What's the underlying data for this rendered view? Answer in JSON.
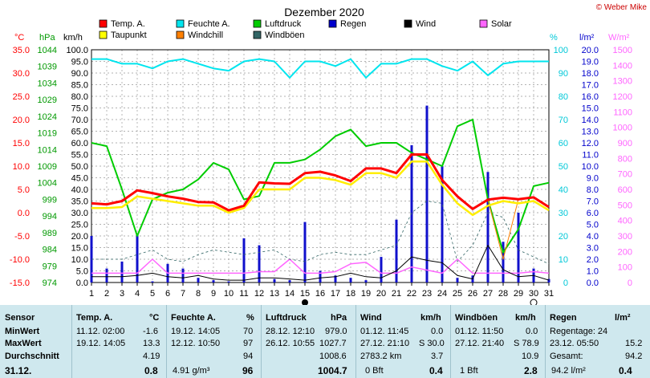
{
  "header": {
    "title": "Dezember 2020",
    "credit": "© Weber Mike"
  },
  "legend": [
    {
      "label": "Temp. A.",
      "color": "#ff0000"
    },
    {
      "label": "Feuchte A.",
      "color": "#00e5ee"
    },
    {
      "label": "Luftdruck",
      "color": "#00cc00"
    },
    {
      "label": "Regen",
      "color": "#0000cc"
    },
    {
      "label": "Wind",
      "color": "#000000"
    },
    {
      "label": "Solar",
      "color": "#ff66ff"
    },
    {
      "label": "Taupunkt",
      "color": "#ffff00"
    },
    {
      "label": "Windchill",
      "color": "#ff8000"
    },
    {
      "label": "Windböen",
      "color": "#336666"
    }
  ],
  "axis_units": {
    "celsius": "°C",
    "hpa": "hPa",
    "kmh": "km/h",
    "percent": "%",
    "rain": "l/m²",
    "solar": "W/m²"
  },
  "chart_data": {
    "type": "line",
    "title": "Dezember 2020",
    "x": [
      1,
      2,
      3,
      4,
      5,
      6,
      7,
      8,
      9,
      10,
      11,
      12,
      13,
      14,
      15,
      16,
      17,
      18,
      19,
      20,
      21,
      22,
      23,
      24,
      25,
      26,
      27,
      28,
      29,
      30,
      31
    ],
    "axes": {
      "temp_c": {
        "min": -15,
        "max": 35,
        "ticks": [
          "35.0",
          "30.0",
          "25.0",
          "20.0",
          "15.0",
          "10.0",
          "5.0",
          "0.0",
          "-5.0",
          "-10.0",
          "-15.0"
        ]
      },
      "pressure_hpa": {
        "min": 974,
        "max": 1044,
        "ticks": [
          "1044",
          "1039",
          "1034",
          "1029",
          "1024",
          "1019",
          "1014",
          "1009",
          "1004",
          "999",
          "994",
          "989",
          "984",
          "979",
          "974"
        ]
      },
      "wind_kmh": {
        "min": 0,
        "max": 100,
        "ticks": [
          "100.0",
          "95.0",
          "90.0",
          "85.0",
          "80.0",
          "75.0",
          "70.0",
          "65.0",
          "60.0",
          "55.0",
          "50.0",
          "45.0",
          "40.0",
          "35.0",
          "30.0",
          "25.0",
          "20.0",
          "15.0",
          "10.0",
          "5.0",
          "0.0"
        ]
      },
      "humidity_pct": {
        "min": 0,
        "max": 100,
        "ticks": [
          "100",
          "90",
          "80",
          "70",
          "60",
          "50",
          "40",
          "30",
          "20",
          "10",
          "0"
        ]
      },
      "rain_lm2": {
        "min": 0,
        "max": 20,
        "ticks": [
          "20.0",
          "19.0",
          "18.0",
          "17.0",
          "16.0",
          "15.0",
          "14.0",
          "13.0",
          "12.0",
          "11.0",
          "10.0",
          "9.0",
          "8.0",
          "7.0",
          "6.0",
          "5.0",
          "4.0",
          "3.0",
          "2.0",
          "1.0",
          "0.0"
        ]
      },
      "solar_wm2": {
        "min": 0,
        "max": 1500,
        "ticks": [
          "1500",
          "1400",
          "1300",
          "1200",
          "1100",
          "1000",
          "900",
          "800",
          "700",
          "600",
          "500",
          "400",
          "300",
          "200",
          "100",
          "0"
        ]
      }
    },
    "series": [
      {
        "name": "Temp. A.",
        "axis": "temp_c",
        "values": [
          2.0,
          1.8,
          2.5,
          4.8,
          4.2,
          3.5,
          3.0,
          2.3,
          2.2,
          0.5,
          1.5,
          6.5,
          6.3,
          6.2,
          8.5,
          8.8,
          8.0,
          6.8,
          9.5,
          9.5,
          8.5,
          12.5,
          12.5,
          7.0,
          3.5,
          0.8,
          2.8,
          3.2,
          2.9,
          3.3,
          1.2
        ]
      },
      {
        "name": "Taupunkt",
        "axis": "temp_c",
        "values": [
          1.0,
          1.0,
          1.2,
          3.5,
          3.0,
          2.5,
          2.0,
          1.5,
          1.5,
          0.0,
          1.0,
          5.0,
          5.0,
          5.0,
          7.5,
          7.5,
          7.0,
          6.0,
          8.5,
          8.5,
          7.5,
          11.0,
          11.0,
          6.0,
          2.0,
          -0.5,
          1.5,
          2.5,
          2.0,
          2.5,
          0.5
        ]
      },
      {
        "name": "Windchill",
        "axis": "temp_c",
        "values": [
          2.0,
          1.8,
          2.5,
          4.8,
          4.2,
          3.5,
          3.0,
          2.3,
          2.2,
          0.5,
          1.5,
          6.5,
          6.3,
          6.2,
          8.5,
          8.8,
          8.0,
          6.8,
          9.5,
          9.5,
          8.5,
          12.5,
          12.5,
          7.0,
          3.5,
          0.8,
          2.8,
          -10.0,
          2.9,
          3.3,
          1.2
        ]
      },
      {
        "name": "Feuchte A.",
        "axis": "humidity_pct",
        "values": [
          96,
          96,
          94,
          94,
          92,
          95,
          96,
          94,
          92,
          91,
          95,
          96,
          95,
          88,
          95,
          95,
          93,
          96,
          88,
          94,
          94,
          96,
          96,
          93,
          91,
          95,
          89,
          94,
          95,
          95,
          95
        ]
      },
      {
        "name": "Luftdruck",
        "axis": "pressure_hpa",
        "values": [
          1016,
          1015,
          1002,
          988,
          999,
          1001,
          1002,
          1005,
          1010,
          1008,
          999,
          1000,
          1010,
          1010,
          1011,
          1014,
          1018,
          1020,
          1015,
          1016,
          1016,
          1013,
          1011,
          1009,
          1021,
          1023,
          999,
          983,
          990,
          1003,
          1004
        ]
      },
      {
        "name": "Regen",
        "axis": "rain_lm2",
        "type": "bar",
        "values": [
          4.0,
          1.2,
          1.8,
          4.2,
          0.1,
          1.6,
          1.2,
          0.4,
          0.2,
          0.1,
          3.8,
          3.2,
          0.3,
          0.2,
          5.2,
          1.0,
          0.6,
          0.4,
          0.2,
          2.2,
          5.4,
          11.8,
          15.2,
          10.0,
          0.4,
          0.6,
          9.5,
          3.5,
          6.0,
          1.2,
          0.3
        ]
      },
      {
        "name": "Wind",
        "axis": "wind_kmh",
        "values": [
          2.5,
          2.5,
          2.5,
          3.0,
          4.0,
          2.5,
          2.0,
          3.0,
          1.5,
          1.0,
          1.0,
          2.0,
          2.0,
          1.5,
          1.0,
          2.0,
          2.5,
          4.0,
          2.5,
          2.0,
          5.0,
          11.0,
          9.5,
          8.5,
          3.0,
          1.5,
          16.0,
          5.5,
          2.5,
          3.0,
          1.0
        ]
      },
      {
        "name": "Windböen",
        "axis": "wind_kmh",
        "values": [
          10,
          10,
          10,
          12,
          14,
          10,
          9,
          12,
          14,
          13,
          12,
          13,
          14,
          10,
          9,
          12,
          13,
          12,
          12,
          14,
          16,
          30,
          35,
          34,
          9,
          16,
          30,
          28,
          14,
          11,
          8
        ]
      },
      {
        "name": "Solar",
        "axis": "solar_wm2",
        "values": [
          60,
          60,
          60,
          60,
          150,
          60,
          60,
          60,
          60,
          60,
          60,
          70,
          70,
          150,
          60,
          60,
          70,
          120,
          130,
          60,
          60,
          100,
          80,
          60,
          150,
          60,
          60,
          60,
          60,
          70,
          60
        ]
      }
    ]
  },
  "table": {
    "headers": {
      "sensor": "Sensor",
      "temp": "Temp. A.",
      "temp_unit": "°C",
      "feuchte": "Feuchte A.",
      "feuchte_unit": "%",
      "druck": "Luftdruck",
      "druck_unit": "hPa",
      "wind": "Wind",
      "wind_unit": "km/h",
      "boen": "Windböen",
      "boen_unit": "km/h",
      "regen": "Regen",
      "regen_unit": "l/m²"
    },
    "rows": {
      "min": {
        "label": "MinWert",
        "temp_time": "11.12. 02:00",
        "temp_val": "-1.6",
        "feuchte_time": "19.12. 14:05",
        "feuchte_val": "70",
        "druck_time": "28.12. 12:10",
        "druck_val": "979.0",
        "wind_time": "01.12. 11:45",
        "wind_val": "0.0",
        "boen_time": "01.12. 11:50",
        "boen_val": "0.0",
        "regen_text": "Regentage: 24",
        "regen_val": ""
      },
      "max": {
        "label": "MaxWert",
        "temp_time": "19.12. 14:05",
        "temp_val": "13.3",
        "feuchte_time": "12.12. 10:50",
        "feuchte_val": "97",
        "druck_time": "26.12. 10:55",
        "druck_val": "1027.7",
        "wind_time": "27.12. 21:10",
        "wind_val": "S 30.0",
        "boen_time": "27.12. 21:40",
        "boen_val": "S 78.9",
        "regen_text": "23.12. 05:50",
        "regen_val": "15.2"
      },
      "avg": {
        "label": "Durchschnitt",
        "temp_val": "4.19",
        "feuchte_val": "94",
        "druck_val": "1008.6",
        "wind_time": "2783.2 km",
        "wind_val": "3.7",
        "boen_val": "10.9",
        "regen_text": "Gesamt:",
        "regen_val": "94.2"
      },
      "last": {
        "label": "31.12.",
        "temp_val": "0.8",
        "feuchte_extra": "4.91 g/m³",
        "feuchte_val": "96",
        "druck_val": "1004.7",
        "wind_time": "0 Bft",
        "wind_val": "0.4",
        "boen_time": "1 Bft",
        "boen_val": "2.8",
        "regen_text": "94.2 l/m²",
        "regen_val": "0.4"
      }
    }
  }
}
